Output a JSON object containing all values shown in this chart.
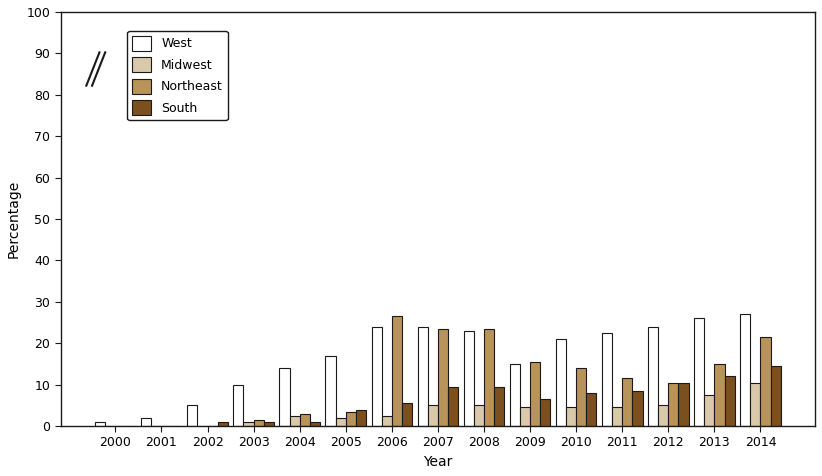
{
  "years": [
    2000,
    2001,
    2002,
    2003,
    2004,
    2005,
    2006,
    2007,
    2008,
    2009,
    2010,
    2011,
    2012,
    2013,
    2014
  ],
  "west": [
    1.0,
    2.0,
    5.0,
    10.0,
    14.0,
    17.0,
    24.0,
    24.0,
    23.0,
    15.0,
    21.0,
    22.5,
    24.0,
    26.0,
    27.0
  ],
  "midwest": [
    0.0,
    0.0,
    0.0,
    1.0,
    2.5,
    2.0,
    2.5,
    5.0,
    5.0,
    4.5,
    4.5,
    4.5,
    5.0,
    7.5,
    10.5
  ],
  "northeast": [
    0.0,
    0.0,
    0.0,
    1.5,
    3.0,
    3.5,
    26.5,
    23.5,
    23.5,
    15.5,
    14.0,
    11.5,
    10.5,
    15.0,
    21.5
  ],
  "south": [
    0.0,
    0.0,
    1.0,
    1.0,
    1.0,
    4.0,
    5.5,
    9.5,
    9.5,
    6.5,
    8.0,
    8.5,
    10.5,
    12.0,
    14.5
  ],
  "colors": {
    "west": "#ffffff",
    "midwest": "#d9c8a9",
    "northeast": "#b8935a",
    "south": "#7b4f1e"
  },
  "edge_color": "#1a1a1a",
  "ylabel": "Percentage",
  "xlabel": "Year",
  "ylim": [
    0,
    100
  ],
  "yticks": [
    0,
    10,
    20,
    30,
    40,
    50,
    60,
    70,
    80,
    90,
    100
  ],
  "legend_labels": [
    "West",
    "Midwest",
    "Northeast",
    "South"
  ],
  "bar_width": 0.22
}
